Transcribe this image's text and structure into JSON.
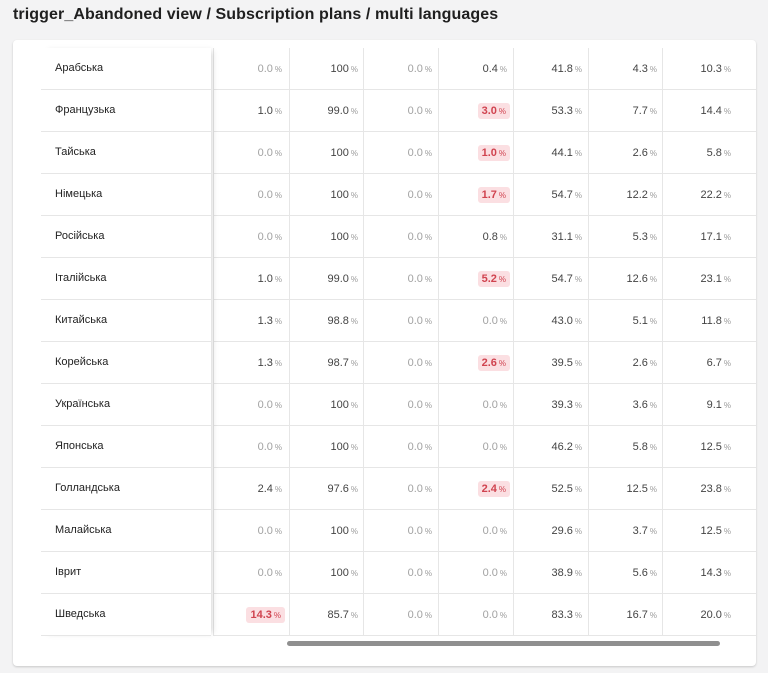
{
  "header": {
    "title": "trigger_Abandoned view / Subscription plans / multi languages"
  },
  "table": {
    "pct_unit": "%",
    "rows": [
      {
        "language": "Арабська",
        "cells": [
          [
            "0.0",
            "muted"
          ],
          [
            "100",
            ""
          ],
          [
            "0.0",
            "muted"
          ],
          [
            "0.4",
            ""
          ],
          [
            "41.8",
            ""
          ],
          [
            "4.3",
            ""
          ],
          [
            "10.3",
            ""
          ]
        ]
      },
      {
        "language": "Французька",
        "cells": [
          [
            "1.0",
            ""
          ],
          [
            "99.0",
            ""
          ],
          [
            "0.0",
            "muted"
          ],
          [
            "3.0",
            "hl"
          ],
          [
            "53.3",
            ""
          ],
          [
            "7.7",
            ""
          ],
          [
            "14.4",
            ""
          ]
        ]
      },
      {
        "language": "Тайська",
        "cells": [
          [
            "0.0",
            "muted"
          ],
          [
            "100",
            ""
          ],
          [
            "0.0",
            "muted"
          ],
          [
            "1.0",
            "hl"
          ],
          [
            "44.1",
            ""
          ],
          [
            "2.6",
            ""
          ],
          [
            "5.8",
            ""
          ]
        ]
      },
      {
        "language": "Німецька",
        "cells": [
          [
            "0.0",
            "muted"
          ],
          [
            "100",
            ""
          ],
          [
            "0.0",
            "muted"
          ],
          [
            "1.7",
            "hl"
          ],
          [
            "54.7",
            ""
          ],
          [
            "12.2",
            ""
          ],
          [
            "22.2",
            ""
          ]
        ]
      },
      {
        "language": "Російська",
        "cells": [
          [
            "0.0",
            "muted"
          ],
          [
            "100",
            ""
          ],
          [
            "0.0",
            "muted"
          ],
          [
            "0.8",
            ""
          ],
          [
            "31.1",
            ""
          ],
          [
            "5.3",
            ""
          ],
          [
            "17.1",
            ""
          ]
        ]
      },
      {
        "language": "Італійська",
        "cells": [
          [
            "1.0",
            ""
          ],
          [
            "99.0",
            ""
          ],
          [
            "0.0",
            "muted"
          ],
          [
            "5.2",
            "hl"
          ],
          [
            "54.7",
            ""
          ],
          [
            "12.6",
            ""
          ],
          [
            "23.1",
            ""
          ]
        ]
      },
      {
        "language": "Китайська",
        "cells": [
          [
            "1.3",
            ""
          ],
          [
            "98.8",
            ""
          ],
          [
            "0.0",
            "muted"
          ],
          [
            "0.0",
            "muted"
          ],
          [
            "43.0",
            ""
          ],
          [
            "5.1",
            ""
          ],
          [
            "11.8",
            ""
          ]
        ]
      },
      {
        "language": "Корейська",
        "cells": [
          [
            "1.3",
            ""
          ],
          [
            "98.7",
            ""
          ],
          [
            "0.0",
            "muted"
          ],
          [
            "2.6",
            "hl"
          ],
          [
            "39.5",
            ""
          ],
          [
            "2.6",
            ""
          ],
          [
            "6.7",
            ""
          ]
        ]
      },
      {
        "language": "Українська",
        "cells": [
          [
            "0.0",
            "muted"
          ],
          [
            "100",
            ""
          ],
          [
            "0.0",
            "muted"
          ],
          [
            "0.0",
            "muted"
          ],
          [
            "39.3",
            ""
          ],
          [
            "3.6",
            ""
          ],
          [
            "9.1",
            ""
          ]
        ]
      },
      {
        "language": "Японська",
        "cells": [
          [
            "0.0",
            "muted"
          ],
          [
            "100",
            ""
          ],
          [
            "0.0",
            "muted"
          ],
          [
            "0.0",
            "muted"
          ],
          [
            "46.2",
            ""
          ],
          [
            "5.8",
            ""
          ],
          [
            "12.5",
            ""
          ]
        ]
      },
      {
        "language": "Голландська",
        "cells": [
          [
            "2.4",
            ""
          ],
          [
            "97.6",
            ""
          ],
          [
            "0.0",
            "muted"
          ],
          [
            "2.4",
            "hl"
          ],
          [
            "52.5",
            ""
          ],
          [
            "12.5",
            ""
          ],
          [
            "23.8",
            ""
          ]
        ]
      },
      {
        "language": "Малайська",
        "cells": [
          [
            "0.0",
            "muted"
          ],
          [
            "100",
            ""
          ],
          [
            "0.0",
            "muted"
          ],
          [
            "0.0",
            "muted"
          ],
          [
            "29.6",
            ""
          ],
          [
            "3.7",
            ""
          ],
          [
            "12.5",
            ""
          ]
        ]
      },
      {
        "language": "Іврит",
        "cells": [
          [
            "0.0",
            "muted"
          ],
          [
            "100",
            ""
          ],
          [
            "0.0",
            "muted"
          ],
          [
            "0.0",
            "muted"
          ],
          [
            "38.9",
            ""
          ],
          [
            "5.6",
            ""
          ],
          [
            "14.3",
            ""
          ]
        ]
      },
      {
        "language": "Шведська",
        "cells": [
          [
            "14.3",
            "hl"
          ],
          [
            "85.7",
            ""
          ],
          [
            "0.0",
            "muted"
          ],
          [
            "0.0",
            "muted"
          ],
          [
            "83.3",
            ""
          ],
          [
            "16.7",
            ""
          ],
          [
            "20.0",
            ""
          ]
        ]
      }
    ]
  },
  "colors": {
    "highlight_bg": "#fbdfe2",
    "highlight_text": "#d0434f"
  }
}
